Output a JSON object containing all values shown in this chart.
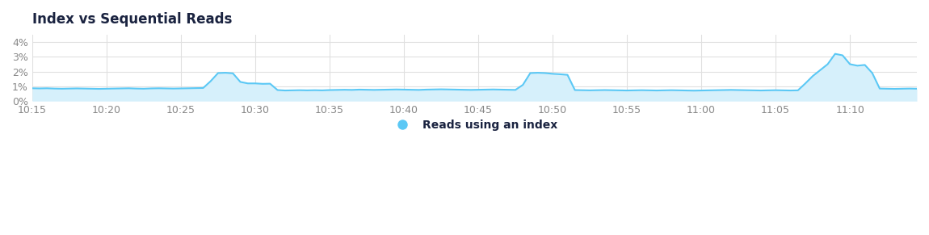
{
  "title": "Index vs Sequential Reads",
  "legend_label": "Reads using an index",
  "line_color": "#5bc8f5",
  "fill_color": "#d6f0fb",
  "background_color": "#ffffff",
  "grid_color": "#e0e0e0",
  "title_color": "#1a2340",
  "tick_color": "#888888",
  "ylim": [
    0,
    4.5
  ],
  "yticks": [
    0,
    1,
    2,
    3,
    4
  ],
  "ytick_labels": [
    "0%",
    "1%",
    "2%",
    "3%",
    "4%"
  ],
  "xtick_labels": [
    "10:15",
    "10:20",
    "10:25",
    "10:30",
    "10:35",
    "10:40",
    "10:45",
    "10:50",
    "10:55",
    "11:00",
    "11:05",
    "11:10",
    "11:15"
  ],
  "time_points": [
    0,
    1,
    2,
    3,
    4,
    5,
    6,
    7,
    8,
    9,
    10,
    11,
    12,
    13,
    14,
    15,
    16,
    17,
    18,
    19,
    20,
    21,
    22,
    23,
    24,
    25,
    26,
    27,
    28,
    29,
    30,
    31,
    32,
    33,
    34,
    35,
    36,
    37,
    38,
    39,
    40,
    41,
    42,
    43,
    44,
    45,
    46,
    47,
    48,
    49,
    50,
    51,
    52,
    53,
    54,
    55,
    56,
    57,
    58,
    59,
    60,
    61,
    62,
    63,
    64,
    65,
    66,
    67,
    68,
    69,
    70,
    71,
    72,
    73,
    74,
    75,
    76,
    77,
    78,
    79,
    80,
    81,
    82,
    83,
    84,
    85,
    86,
    87,
    88,
    89,
    90,
    91,
    92,
    93,
    94,
    95,
    96,
    97,
    98,
    99,
    100,
    101,
    102,
    103,
    104,
    105,
    106,
    107,
    108,
    109,
    110,
    111,
    112,
    113,
    114,
    115,
    116,
    117,
    118,
    119
  ],
  "values": [
    0.87,
    0.86,
    0.87,
    0.85,
    0.84,
    0.85,
    0.86,
    0.85,
    0.84,
    0.83,
    0.84,
    0.85,
    0.86,
    0.87,
    0.85,
    0.84,
    0.86,
    0.87,
    0.86,
    0.85,
    0.86,
    0.87,
    0.88,
    0.89,
    1.35,
    1.9,
    1.92,
    1.88,
    1.3,
    1.2,
    1.2,
    1.17,
    1.18,
    0.75,
    0.72,
    0.73,
    0.74,
    0.73,
    0.74,
    0.73,
    0.75,
    0.76,
    0.77,
    0.76,
    0.78,
    0.77,
    0.76,
    0.77,
    0.78,
    0.79,
    0.78,
    0.77,
    0.76,
    0.78,
    0.79,
    0.8,
    0.79,
    0.78,
    0.77,
    0.76,
    0.77,
    0.78,
    0.79,
    0.78,
    0.77,
    0.76,
    1.1,
    1.9,
    1.92,
    1.9,
    1.85,
    1.82,
    1.78,
    0.75,
    0.74,
    0.73,
    0.74,
    0.75,
    0.74,
    0.73,
    0.72,
    0.73,
    0.74,
    0.73,
    0.72,
    0.73,
    0.74,
    0.73,
    0.72,
    0.71,
    0.72,
    0.73,
    0.74,
    0.75,
    0.76,
    0.75,
    0.74,
    0.73,
    0.72,
    0.73,
    0.74,
    0.73,
    0.72,
    0.73,
    1.2,
    1.7,
    2.1,
    2.5,
    3.2,
    3.1,
    2.5,
    2.4,
    2.45,
    1.9,
    0.85,
    0.84,
    0.83,
    0.84,
    0.85,
    0.84
  ],
  "xtick_positions": [
    0,
    10,
    20,
    30,
    40,
    50,
    60,
    70,
    80,
    90,
    100,
    110,
    120
  ]
}
